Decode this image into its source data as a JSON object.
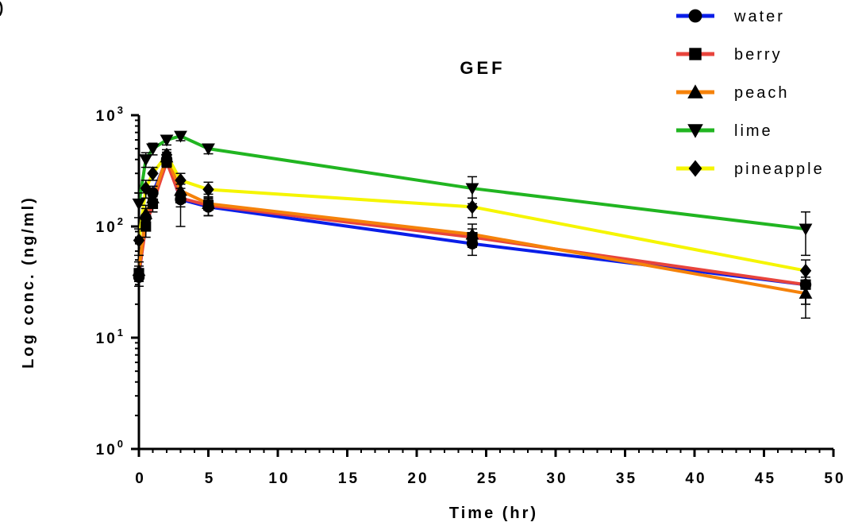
{
  "panel_label": ")",
  "chart_data": {
    "type": "line",
    "title": "GEF",
    "xlabel": "Time (hr)",
    "ylabel": "Log conc. (ng/ml)",
    "y_scale": "log",
    "xlim": [
      0,
      50
    ],
    "ylim": [
      1,
      1000
    ],
    "x_ticks": [
      "0",
      "5",
      "10",
      "15",
      "20",
      "25",
      "30",
      "35",
      "40",
      "45",
      "50"
    ],
    "y_ticks": [
      {
        "base": "10",
        "exp": "0"
      },
      {
        "base": "10",
        "exp": "1"
      },
      {
        "base": "10",
        "exp": "2"
      },
      {
        "base": "10",
        "exp": "3"
      }
    ],
    "legend_position": "top-right",
    "series": [
      {
        "name": "water",
        "color": "#0a1ee8",
        "marker": "circle",
        "x": [
          0,
          0.5,
          1,
          2,
          3,
          5,
          24,
          48
        ],
        "y": [
          35,
          120,
          200,
          400,
          175,
          150,
          70,
          30
        ],
        "err": [
          6,
          25,
          30,
          40,
          25,
          25,
          15,
          10
        ]
      },
      {
        "name": "berry",
        "color": "#e8443c",
        "marker": "square",
        "x": [
          0,
          0.5,
          1,
          2,
          3,
          5,
          24,
          48
        ],
        "y": [
          38,
          100,
          160,
          380,
          180,
          155,
          80,
          30
        ],
        "err": [
          6,
          20,
          25,
          40,
          80,
          30,
          15,
          10
        ]
      },
      {
        "name": "peach",
        "color": "#f5820a",
        "marker": "triangle",
        "x": [
          0,
          0.5,
          1,
          2,
          3,
          5,
          24,
          48
        ],
        "y": [
          40,
          130,
          180,
          420,
          210,
          160,
          85,
          25
        ],
        "err": [
          8,
          25,
          30,
          45,
          30,
          35,
          20,
          10
        ]
      },
      {
        "name": "lime",
        "color": "#21b521",
        "marker": "triangle-down",
        "x": [
          0,
          0.5,
          1,
          2,
          3,
          5,
          24,
          48
        ],
        "y": [
          160,
          400,
          500,
          600,
          650,
          500,
          220,
          95
        ],
        "err": [
          40,
          60,
          60,
          60,
          60,
          50,
          60,
          40
        ]
      },
      {
        "name": "pineapple",
        "color": "#f5f500",
        "marker": "diamond",
        "x": [
          0,
          0.5,
          1,
          2,
          3,
          5,
          24,
          48
        ],
        "y": [
          75,
          220,
          300,
          440,
          260,
          215,
          150,
          40
        ],
        "err": [
          20,
          40,
          40,
          50,
          40,
          35,
          30,
          10
        ]
      }
    ]
  }
}
